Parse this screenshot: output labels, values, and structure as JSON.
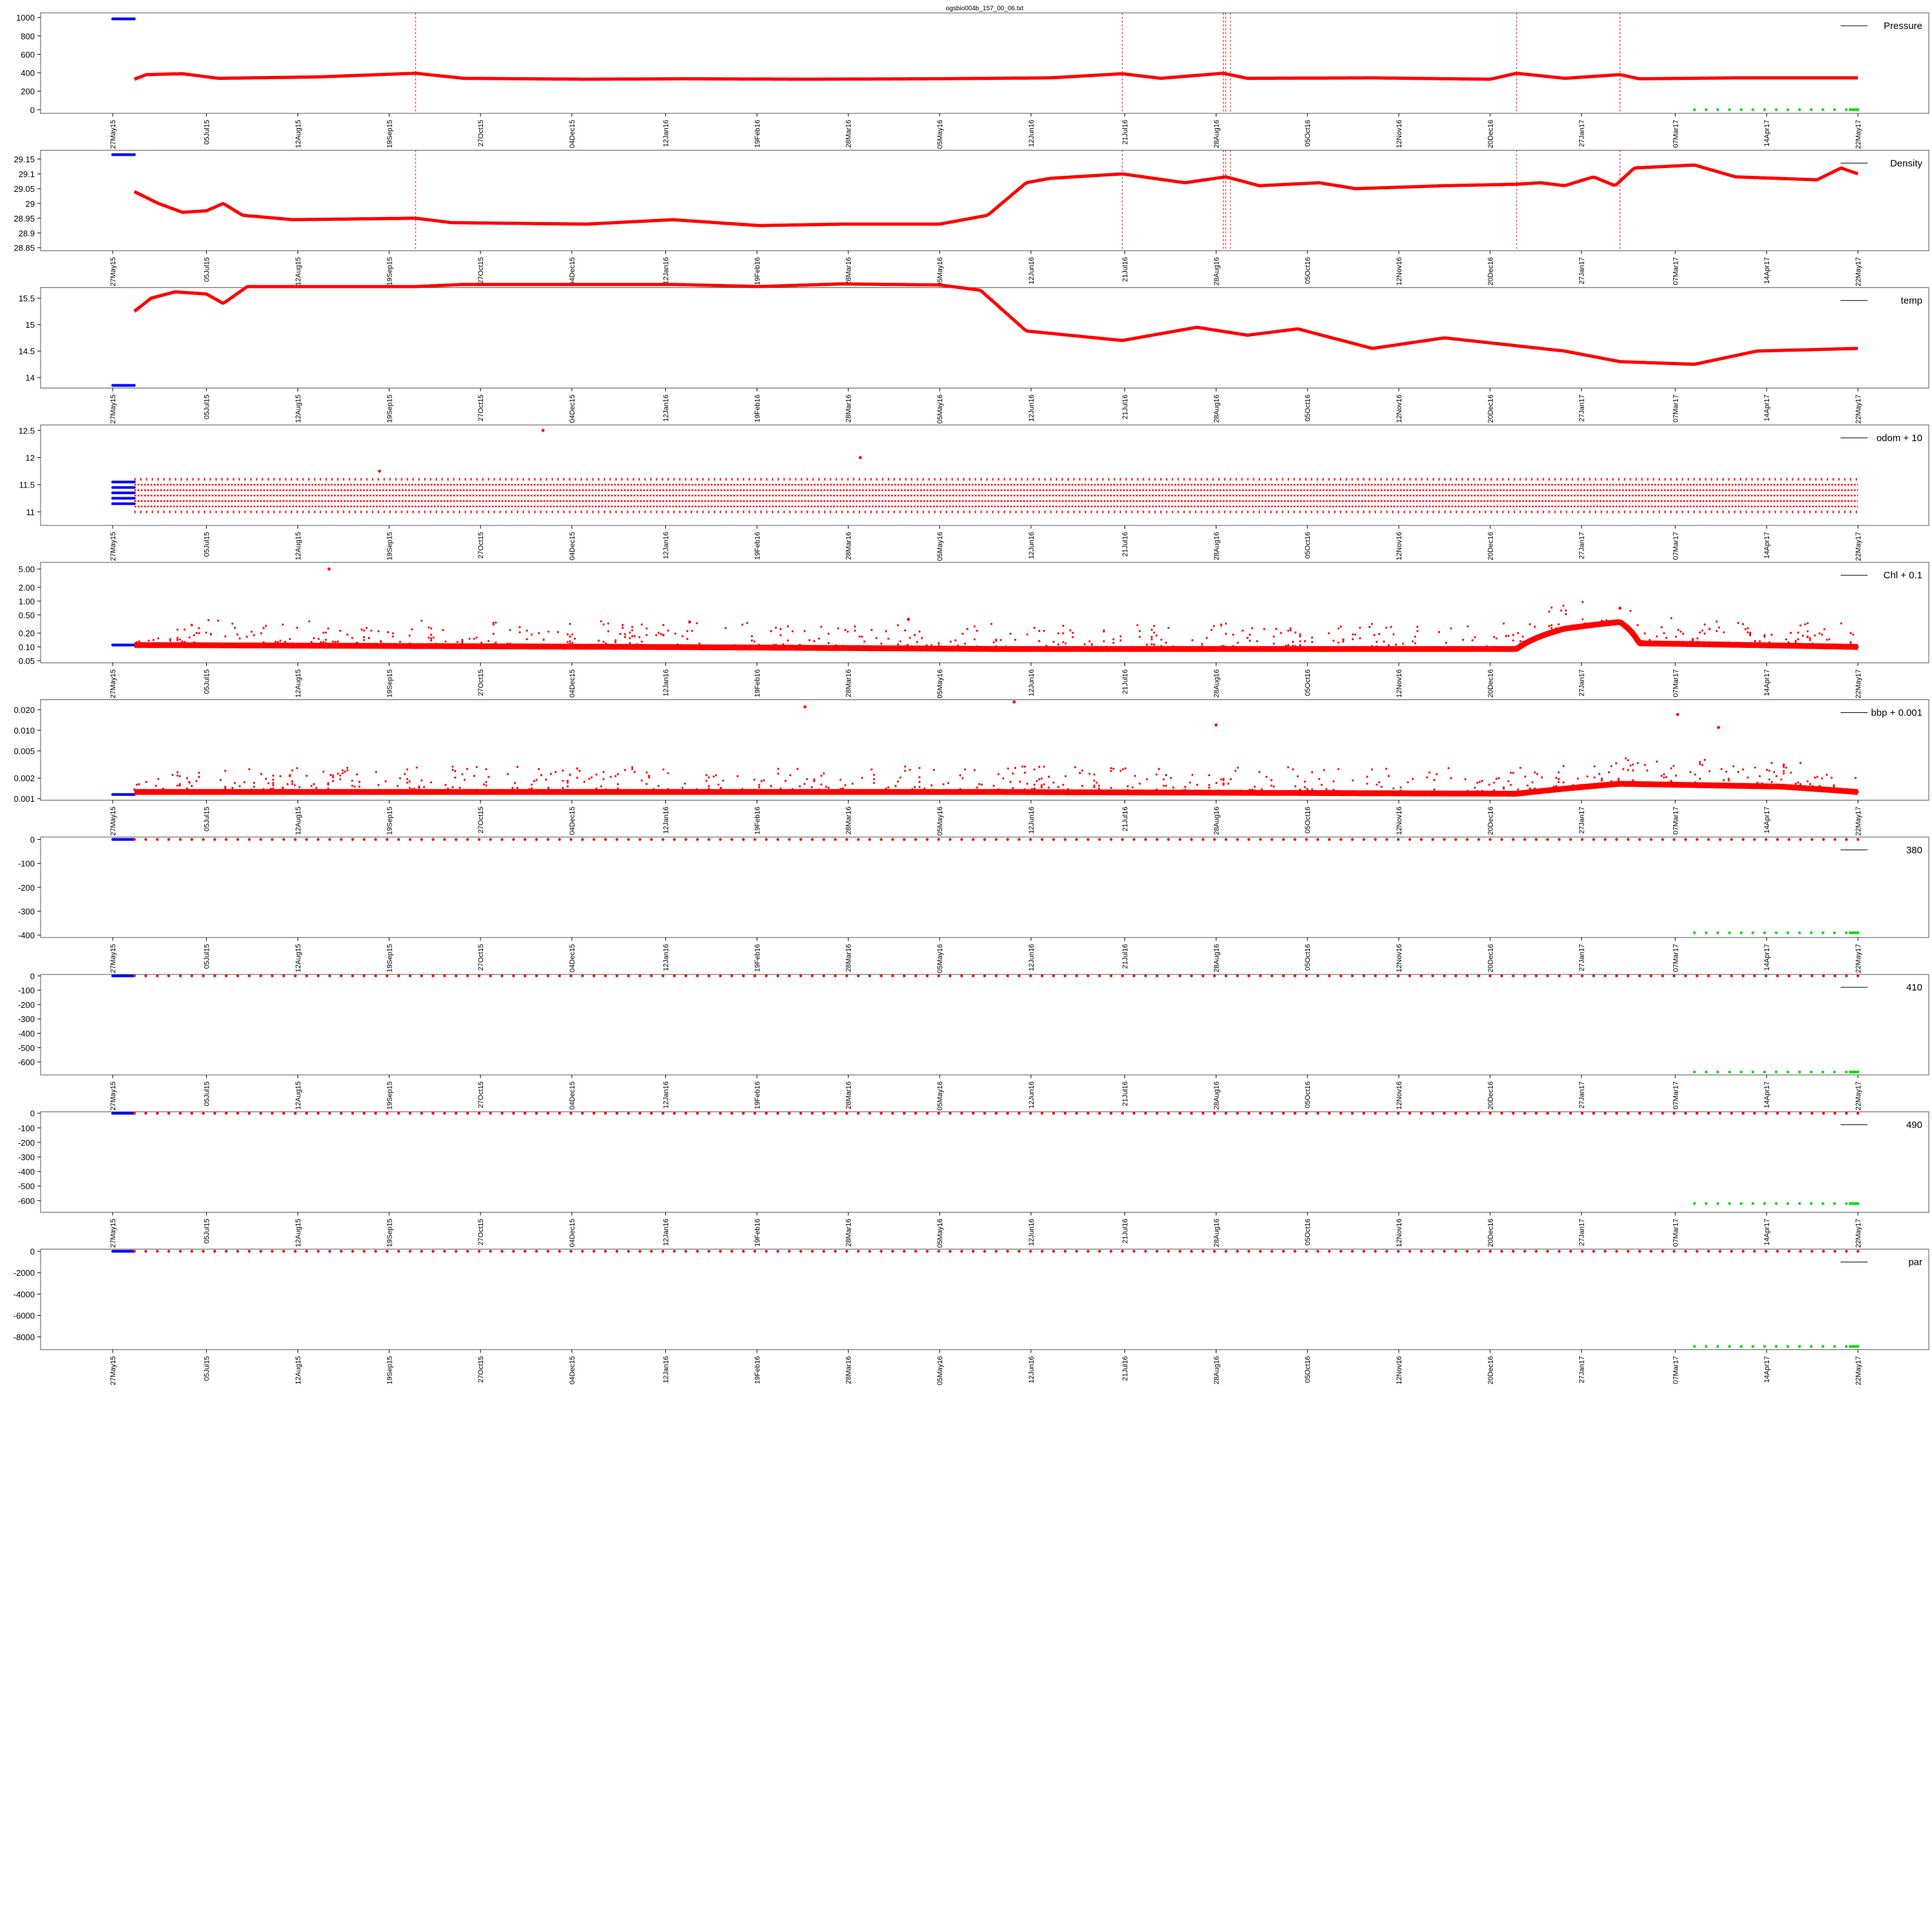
{
  "figure": {
    "title": "ogsbio004b_157_00_06.txt"
  },
  "chart_data": {
    "type": "scatter",
    "x_axis": {
      "type": "date",
      "range": [
        "2015-05-27",
        "2017-05-22"
      ],
      "tick_labels": [
        "27May15",
        "05Jul15",
        "12Aug15",
        "19Sep15",
        "27Oct15",
        "04Dec15",
        "12Jan16",
        "19Feb16",
        "28Mar16",
        "05May16",
        "12Jun16",
        "21Jul16",
        "28Aug16",
        "05Oct16",
        "12Nov16",
        "20Dec16",
        "27Jan17",
        "07Mar17",
        "14Apr17",
        "22May17"
      ]
    },
    "series_colors": {
      "initial": "#0000ff",
      "main": "#ff0000",
      "final": "#00dd00",
      "events": "#ff0000"
    },
    "event_dates": [
      "2015-09-30",
      "2016-07-20",
      "2016-08-31",
      "2016-09-01",
      "2016-09-03",
      "2016-12-31",
      "2017-02-12"
    ],
    "panels": [
      {
        "legend": "Pressure",
        "ylim": [
          -40,
          1050
        ],
        "yticks": [
          0,
          200,
          400,
          600,
          800,
          1000
        ],
        "show_events": true,
        "initial": {
          "x": [
            "2015-05-27",
            "2015-06-05"
          ],
          "y": 985
        },
        "main": {
          "x": [
            "2015-06-05",
            "2017-05-22"
          ],
          "trace": [
            [
              "2015-06-05",
              330
            ],
            [
              "2015-06-10",
              380
            ],
            [
              "2015-06-25",
              390
            ],
            [
              "2015-07-10",
              340
            ],
            [
              "2015-08-20",
              355
            ],
            [
              "2015-09-30",
              395
            ],
            [
              "2015-10-20",
              340
            ],
            [
              "2015-12-10",
              330
            ],
            [
              "2016-01-20",
              335
            ],
            [
              "2016-03-10",
              330
            ],
            [
              "2016-05-01",
              335
            ],
            [
              "2016-06-20",
              345
            ],
            [
              "2016-07-20",
              390
            ],
            [
              "2016-08-05",
              340
            ],
            [
              "2016-08-31",
              395
            ],
            [
              "2016-09-10",
              340
            ],
            [
              "2016-11-01",
              345
            ],
            [
              "2016-12-20",
              330
            ],
            [
              "2016-12-31",
              395
            ],
            [
              "2017-01-20",
              340
            ],
            [
              "2017-02-12",
              380
            ],
            [
              "2017-02-20",
              335
            ],
            [
              "2017-04-01",
              345
            ],
            [
              "2017-05-22",
              345
            ]
          ]
        },
        "final": {
          "x": [
            "2017-03-15",
            "2017-05-22"
          ],
          "y": 0
        }
      },
      {
        "legend": "Density",
        "ylim": [
          28.84,
          29.18
        ],
        "yticks": [
          28.85,
          28.9,
          28.95,
          29.0,
          29.05,
          29.1,
          29.15
        ],
        "show_events": true,
        "initial": {
          "x": [
            "2015-05-27",
            "2015-06-05"
          ],
          "y": 29.165
        },
        "main": {
          "x": [
            "2015-06-05",
            "2017-05-22"
          ],
          "trace": [
            [
              "2015-06-05",
              29.04
            ],
            [
              "2015-06-15",
              29.0
            ],
            [
              "2015-06-25",
              28.97
            ],
            [
              "2015-07-05",
              28.975
            ],
            [
              "2015-07-12",
              29.0
            ],
            [
              "2015-07-20",
              28.96
            ],
            [
              "2015-08-10",
              28.945
            ],
            [
              "2015-09-30",
              28.95
            ],
            [
              "2015-10-15",
              28.935
            ],
            [
              "2015-12-10",
              28.93
            ],
            [
              "2016-01-15",
              28.945
            ],
            [
              "2016-02-20",
              28.925
            ],
            [
              "2016-03-25",
              28.93
            ],
            [
              "2016-05-05",
              28.93
            ],
            [
              "2016-05-25",
              28.96
            ],
            [
              "2016-06-10",
              29.07
            ],
            [
              "2016-06-20",
              29.085
            ],
            [
              "2016-07-20",
              29.1
            ],
            [
              "2016-08-15",
              29.07
            ],
            [
              "2016-09-01",
              29.09
            ],
            [
              "2016-09-15",
              29.06
            ],
            [
              "2016-10-10",
              29.07
            ],
            [
              "2016-10-25",
              29.05
            ],
            [
              "2016-12-01",
              29.06
            ],
            [
              "2016-12-31",
              29.065
            ],
            [
              "2017-01-10",
              29.07
            ],
            [
              "2017-01-20",
              29.06
            ],
            [
              "2017-02-01",
              29.09
            ],
            [
              "2017-02-10",
              29.06
            ],
            [
              "2017-02-18",
              29.12
            ],
            [
              "2017-03-15",
              29.13
            ],
            [
              "2017-04-01",
              29.09
            ],
            [
              "2017-05-05",
              29.08
            ],
            [
              "2017-05-15",
              29.12
            ],
            [
              "2017-05-22",
              29.1
            ]
          ]
        },
        "final": null
      },
      {
        "legend": "temp",
        "ylim": [
          13.8,
          15.7
        ],
        "yticks": [
          14.0,
          14.5,
          15.0,
          15.5
        ],
        "show_events": false,
        "initial": {
          "x": [
            "2015-05-27",
            "2015-06-05"
          ],
          "y": 13.85
        },
        "main": {
          "x": [
            "2015-06-05",
            "2017-05-22"
          ],
          "trace": [
            [
              "2015-06-05",
              15.25
            ],
            [
              "2015-06-12",
              15.5
            ],
            [
              "2015-06-22",
              15.62
            ],
            [
              "2015-07-05",
              15.58
            ],
            [
              "2015-07-12",
              15.4
            ],
            [
              "2015-07-22",
              15.72
            ],
            [
              "2015-09-30",
              15.72
            ],
            [
              "2015-10-20",
              15.76
            ],
            [
              "2016-01-15",
              15.76
            ],
            [
              "2016-02-20",
              15.72
            ],
            [
              "2016-03-25",
              15.77
            ],
            [
              "2016-05-05",
              15.75
            ],
            [
              "2016-05-22",
              15.65
            ],
            [
              "2016-06-10",
              14.88
            ],
            [
              "2016-07-20",
              14.7
            ],
            [
              "2016-08-20",
              14.95
            ],
            [
              "2016-09-10",
              14.8
            ],
            [
              "2016-10-01",
              14.92
            ],
            [
              "2016-11-01",
              14.55
            ],
            [
              "2016-12-01",
              14.75
            ],
            [
              "2016-12-31",
              14.6
            ],
            [
              "2017-01-20",
              14.5
            ],
            [
              "2017-02-12",
              14.3
            ],
            [
              "2017-03-15",
              14.25
            ],
            [
              "2017-04-10",
              14.5
            ],
            [
              "2017-05-22",
              14.55
            ]
          ]
        },
        "final": null
      },
      {
        "legend": "odom + 10",
        "ylim": [
          10.75,
          12.6
        ],
        "yticks": [
          11.0,
          11.5,
          12.0,
          12.5
        ],
        "show_events": false,
        "initial": {
          "x": [
            "2015-05-27",
            "2015-06-05"
          ],
          "levels": [
            11.15,
            11.25,
            11.35,
            11.45,
            11.55
          ]
        },
        "main": {
          "x": [
            "2015-06-05",
            "2017-05-22"
          ],
          "levels": [
            11.0,
            11.1,
            11.2,
            11.3,
            11.4,
            11.5,
            11.6
          ]
        },
        "outliers": [
          [
            "2015-11-22",
            12.5
          ],
          [
            "2016-04-02",
            12.0
          ],
          [
            "2015-09-15",
            11.75
          ]
        ],
        "final": null
      },
      {
        "legend": "Chl + 0.1",
        "scale": "log",
        "ylim": [
          0.045,
          7.0
        ],
        "yticks": [
          0.05,
          0.1,
          0.2,
          0.5,
          1.0,
          2.0,
          5.0
        ],
        "ytick_labels": [
          "0.05",
          "0.10",
          "0.20",
          "0.50",
          "1.00",
          "2.00",
          "5.00"
        ],
        "show_events": false,
        "initial": {
          "x": [
            "2015-05-27",
            "2015-06-05"
          ],
          "y": 0.11
        },
        "main": {
          "x": [
            "2015-06-05",
            "2017-05-22"
          ],
          "trace": [
            [
              "2015-06-05",
              0.11
            ],
            [
              "2016-01-01",
              0.1
            ],
            [
              "2016-06-01",
              0.09
            ],
            [
              "2016-12-31",
              0.09
            ],
            [
              "2017-01-20",
              0.25
            ],
            [
              "2017-02-12",
              0.35
            ],
            [
              "2017-02-20",
              0.12
            ],
            [
              "2017-05-22",
              0.1
            ]
          ]
        },
        "outliers": [
          [
            "2015-08-25",
            5.0
          ],
          [
            "2016-01-22",
            0.35
          ],
          [
            "2016-04-22",
            0.4
          ],
          [
            "2017-02-12",
            0.7
          ]
        ],
        "final": null
      },
      {
        "legend": "bbp + 0.001",
        "scale": "log",
        "ylim": [
          0.00095,
          0.028
        ],
        "yticks": [
          0.001,
          0.002,
          0.005,
          0.01,
          0.02
        ],
        "ytick_labels": [
          "0.001",
          "0.002",
          "0.005",
          "0.010",
          "0.020"
        ],
        "show_events": false,
        "initial": {
          "x": [
            "2015-05-27",
            "2015-06-05"
          ],
          "y": 0.00115
        },
        "main": {
          "x": [
            "2015-06-05",
            "2017-05-22"
          ],
          "trace": [
            [
              "2015-06-05",
              0.00125
            ],
            [
              "2016-06-01",
              0.00125
            ],
            [
              "2016-12-31",
              0.00118
            ],
            [
              "2017-02-12",
              0.00165
            ],
            [
              "2017-04-20",
              0.0015
            ],
            [
              "2017-05-22",
              0.00125
            ]
          ]
        },
        "outliers": [
          [
            "2016-03-10",
            0.022
          ],
          [
            "2016-06-05",
            0.026
          ],
          [
            "2016-08-28",
            0.012
          ],
          [
            "2017-03-25",
            0.011
          ],
          [
            "2017-03-08",
            0.017
          ]
        ],
        "final": null
      },
      {
        "legend": "380",
        "ylim": [
          -410,
          10
        ],
        "yticks": [
          -400,
          -300,
          -200,
          -100,
          0
        ],
        "show_events": false,
        "initial": {
          "x": [
            "2015-05-27",
            "2015-06-05"
          ],
          "y": 0
        },
        "main": {
          "x": [
            "2015-06-05",
            "2017-05-22"
          ],
          "y": 0
        },
        "final": {
          "x": [
            "2017-03-15",
            "2017-05-22"
          ],
          "y": -390
        }
      },
      {
        "legend": "410",
        "ylim": [
          -690,
          10
        ],
        "yticks": [
          -600,
          -500,
          -400,
          -300,
          -200,
          -100,
          0
        ],
        "show_events": false,
        "initial": {
          "x": [
            "2015-05-27",
            "2015-06-05"
          ],
          "y": 0
        },
        "main": {
          "x": [
            "2015-06-05",
            "2017-05-22"
          ],
          "y": 0
        },
        "final": {
          "x": [
            "2017-03-15",
            "2017-05-22"
          ],
          "y": -670
        }
      },
      {
        "legend": "490",
        "ylim": [
          -680,
          10
        ],
        "yticks": [
          -600,
          -500,
          -400,
          -300,
          -200,
          -100,
          0
        ],
        "show_events": false,
        "initial": {
          "x": [
            "2015-05-27",
            "2015-06-05"
          ],
          "y": 0
        },
        "main": {
          "x": [
            "2015-06-05",
            "2017-05-22"
          ],
          "y": 0
        },
        "final": {
          "x": [
            "2017-03-15",
            "2017-05-22"
          ],
          "y": -620
        }
      },
      {
        "legend": "par",
        "ylim": [
          -9200,
          200
        ],
        "yticks": [
          -8000,
          -6000,
          -4000,
          -2000,
          0
        ],
        "show_events": false,
        "initial": {
          "x": [
            "2015-05-27",
            "2015-06-05"
          ],
          "y": 0
        },
        "main": {
          "x": [
            "2015-06-05",
            "2017-05-22"
          ],
          "y": 0
        },
        "final": {
          "x": [
            "2017-03-15",
            "2017-05-22"
          ],
          "y": -8900
        }
      }
    ]
  }
}
